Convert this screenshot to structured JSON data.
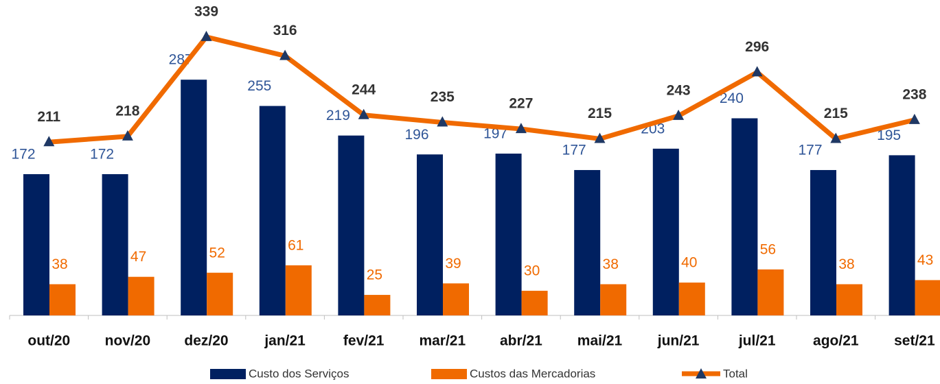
{
  "chart_data": {
    "type": "bar",
    "categories": [
      "out/20",
      "nov/20",
      "dez/20",
      "jan/21",
      "fev/21",
      "mar/21",
      "abr/21",
      "mai/21",
      "jun/21",
      "jul/21",
      "ago/21",
      "set/21"
    ],
    "series": [
      {
        "name": "Custo dos Serviços",
        "color": "#002060",
        "values": [
          172,
          172,
          287,
          255,
          219,
          196,
          197,
          177,
          203,
          240,
          177,
          195
        ]
      },
      {
        "name": "Custos das Mercadorias",
        "color": "#f06a00",
        "values": [
          38,
          47,
          52,
          61,
          25,
          39,
          30,
          38,
          40,
          56,
          38,
          43
        ]
      },
      {
        "name": "Total",
        "type": "line",
        "color": "#f06a00",
        "values": [
          211,
          218,
          339,
          316,
          244,
          235,
          227,
          215,
          243,
          296,
          215,
          238
        ]
      }
    ],
    "ylim": [
      0,
      384
    ]
  }
}
